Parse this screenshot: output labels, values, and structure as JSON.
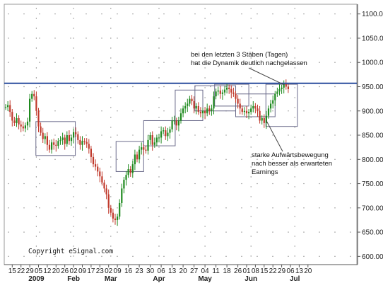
{
  "chart_data": {
    "type": "candlestick",
    "copyright": "Copyright eSignal.com",
    "y_ticks": [
      "1100.00",
      "1050.00",
      "1000.00",
      "950.00",
      "900.00",
      "850.00",
      "800.00",
      "750.00",
      "700.00",
      "650.00",
      "600.00"
    ],
    "y_tick_values": [
      1100,
      1050,
      1000,
      950,
      900,
      850,
      800,
      750,
      700,
      650,
      600
    ],
    "ylim": [
      583,
      1120
    ],
    "x_day_ticks": [
      {
        "label": "15",
        "i": 3
      },
      {
        "label": "22",
        "i": 7
      },
      {
        "label": "29",
        "i": 11
      },
      {
        "label": "05",
        "i": 15
      },
      {
        "label": "12",
        "i": 19
      },
      {
        "label": "20",
        "i": 23
      },
      {
        "label": "26",
        "i": 27
      },
      {
        "label": "02",
        "i": 31
      },
      {
        "label": "09",
        "i": 35
      },
      {
        "label": "17",
        "i": 39
      },
      {
        "label": "23",
        "i": 43
      },
      {
        "label": "02",
        "i": 47
      },
      {
        "label": "09",
        "i": 51
      },
      {
        "label": "16",
        "i": 56
      },
      {
        "label": "23",
        "i": 61
      },
      {
        "label": "30",
        "i": 66
      },
      {
        "label": "06",
        "i": 71
      },
      {
        "label": "13",
        "i": 76
      },
      {
        "label": "20",
        "i": 81
      },
      {
        "label": "27",
        "i": 86
      },
      {
        "label": "04",
        "i": 91
      },
      {
        "label": "11",
        "i": 96
      },
      {
        "label": "18",
        "i": 101
      },
      {
        "label": "26",
        "i": 106
      },
      {
        "label": "01",
        "i": 110
      },
      {
        "label": "08",
        "i": 114
      },
      {
        "label": "15",
        "i": 118
      },
      {
        "label": "22",
        "i": 122
      },
      {
        "label": "29",
        "i": 126
      },
      {
        "label": "06",
        "i": 130
      },
      {
        "label": "13",
        "i": 134
      },
      {
        "label": "20",
        "i": 138
      }
    ],
    "x_month_labels": [
      {
        "label": "2009",
        "i": 14
      },
      {
        "label": "Feb",
        "i": 31
      },
      {
        "label": "Mar",
        "i": 48
      },
      {
        "label": "Apr",
        "i": 70
      },
      {
        "label": "May",
        "i": 91
      },
      {
        "label": "Jun",
        "i": 112
      },
      {
        "label": "Jul",
        "i": 132
      }
    ],
    "horizontal_line": 957,
    "close": [
      908,
      912,
      898,
      880,
      875,
      885,
      872,
      868,
      864,
      870,
      878,
      925,
      935,
      930,
      900,
      868,
      855,
      842,
      848,
      830,
      820,
      835,
      830,
      828,
      838,
      840,
      845,
      832,
      850,
      838,
      845,
      856,
      852,
      840,
      830,
      838,
      836,
      832,
      822,
      805,
      790,
      785,
      775,
      765,
      752,
      740,
      728,
      700,
      690,
      678,
      675,
      682,
      710,
      740,
      758,
      768,
      780,
      772,
      790,
      810,
      800,
      820,
      825,
      820,
      818,
      840,
      850,
      830,
      835,
      845,
      845,
      858,
      860,
      848,
      855,
      862,
      880,
      880,
      870,
      880,
      895,
      905,
      910,
      915,
      925,
      920,
      905,
      910,
      898,
      895,
      900,
      895,
      905,
      900,
      905,
      930,
      940,
      942,
      935,
      938,
      944,
      948,
      945,
      938,
      935,
      925,
      915,
      905,
      898,
      900,
      895,
      898,
      905,
      910,
      905,
      900,
      880,
      885,
      875,
      890,
      905,
      915,
      922,
      935,
      940,
      945,
      948,
      955,
      950,
      945
    ],
    "boxes": [
      {
        "lo": 808,
        "hi": 878,
        "i0": 23,
        "i1": 53
      },
      {
        "lo": 775,
        "hi": 837,
        "i0": 84,
        "i1": 105
      },
      {
        "lo": 828,
        "hi": 880,
        "i0": 105,
        "i1": 129
      },
      {
        "lo": 880,
        "hi": 943,
        "i0": 129,
        "i1": 150
      },
      {
        "lo": 900,
        "hi": 952,
        "i0": 144,
        "i1": 175
      },
      {
        "lo": 910,
        "hi": 955,
        "i0": 159,
        "i1": 185
      },
      {
        "lo": 888,
        "hi": 935,
        "i0": 175,
        "i1": 205
      },
      {
        "lo": 868,
        "hi": 955,
        "i0": 198,
        "i1": 222
      }
    ],
    "annotation_top": [
      "bei den letzten 3 Stäben (Tagen)",
      "hat die Dynamik deutlich nachgelassen"
    ],
    "annotation_bottom": [
      "starke Aufwärtsbewegung",
      "nach besser als erwarteten",
      "Earnings"
    ]
  }
}
